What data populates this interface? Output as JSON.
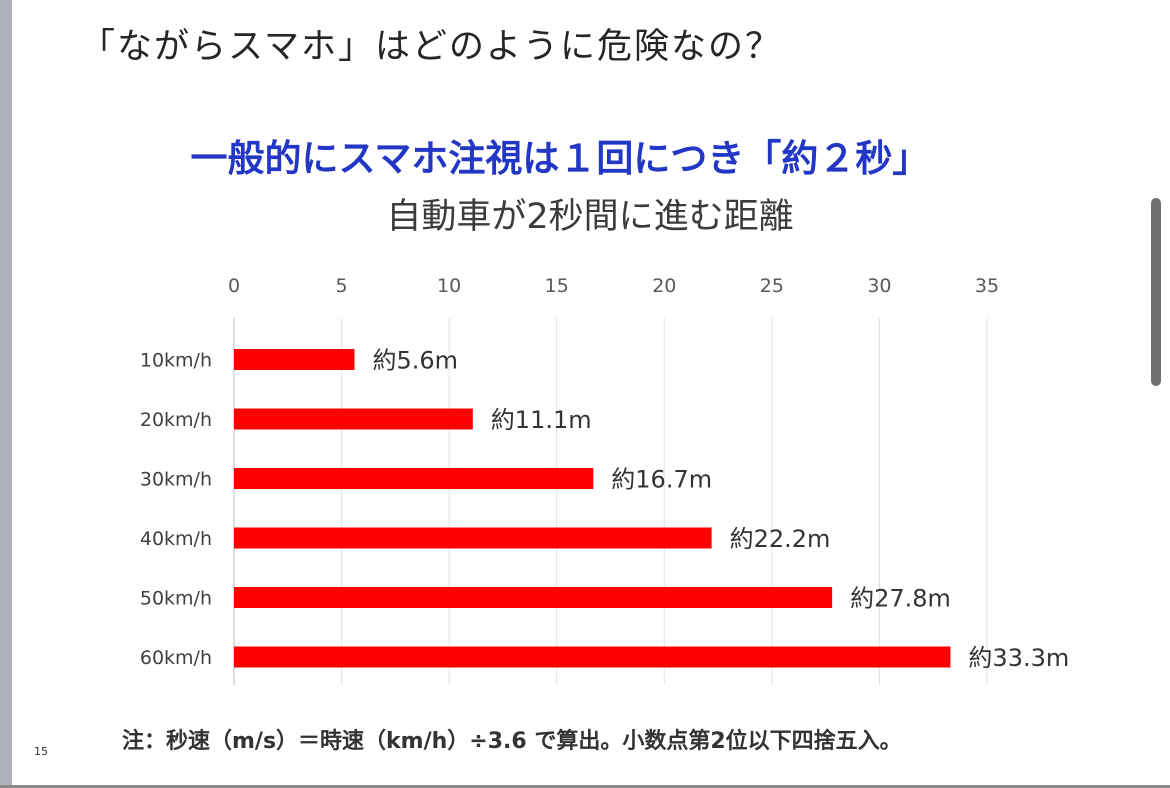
{
  "slide": {
    "title": "「ながらスマホ」はどのように危険なの？",
    "page_number": "15"
  },
  "chart_data": {
    "type": "bar",
    "orientation": "horizontal",
    "title": "一般的にスマホ注視は１回につき「約２秒」",
    "subtitle": "自動車が2秒間に進む距離",
    "categories": [
      "10km/h",
      "20km/h",
      "30km/h",
      "40km/h",
      "50km/h",
      "60km/h"
    ],
    "values": [
      5.6,
      11.1,
      16.7,
      22.2,
      27.8,
      33.3
    ],
    "data_labels": [
      "約5.6m",
      "約11.1m",
      "約16.7m",
      "約22.2m",
      "約27.8m",
      "約33.3m"
    ],
    "x_ticks": [
      "0",
      "5",
      "10",
      "15",
      "20",
      "25",
      "30",
      "35"
    ],
    "xlim": [
      0,
      35
    ],
    "x_axis_position": "top",
    "grid": "vertical",
    "legend": "none",
    "bar_color": "#ff0000",
    "title_color": "#2337c6",
    "note": "注：秒速（m/s）＝時速（km/h）÷3.6 で算出。小数点第2位以下四捨五入。"
  }
}
